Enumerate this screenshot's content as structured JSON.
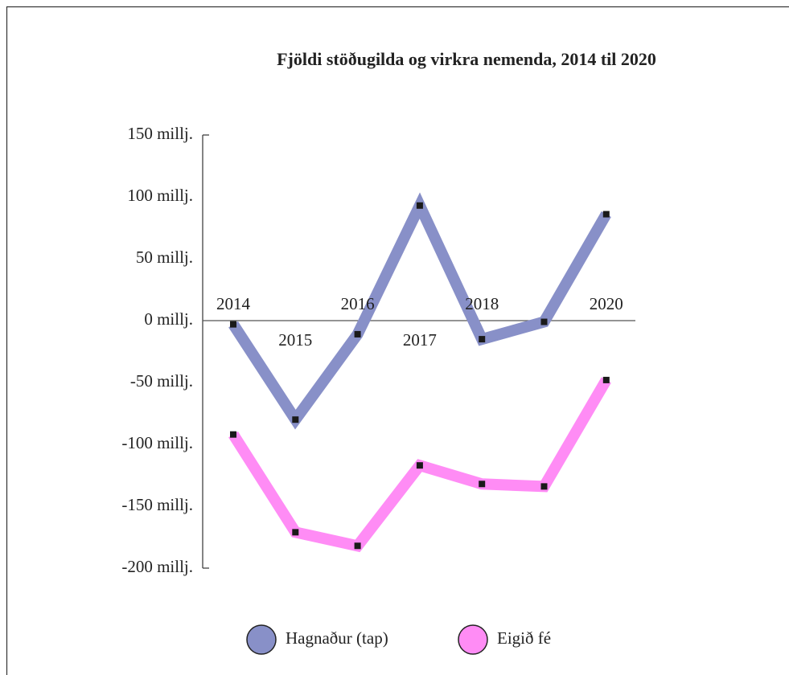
{
  "chart_data": {
    "type": "line",
    "title": "Fjöldi stöðugilda og virkra nemenda, 2014 til 2020",
    "categories": [
      "2014",
      "2015",
      "2016",
      "2017",
      "2018",
      null,
      "2020"
    ],
    "series": [
      {
        "name": "Hagnaður (tap)",
        "color": "#8890c8",
        "values": [
          -3,
          -80,
          -11,
          93,
          -15,
          -1,
          86
        ]
      },
      {
        "name": "Eigið fé",
        "color": "#ff8cf5",
        "values": [
          -92,
          -171,
          -182,
          -117,
          -132,
          -134,
          -48
        ]
      }
    ],
    "ylim": [
      -200,
      150
    ],
    "yticks": [
      {
        "value": -200,
        "label": "-200 millj."
      },
      {
        "value": -150,
        "label": "-150 millj."
      },
      {
        "value": -100,
        "label": "-100 millj."
      },
      {
        "value": -50,
        "label": "-50 millj."
      },
      {
        "value": 0,
        "label": "0 millj."
      },
      {
        "value": 50,
        "label": "50 millj."
      },
      {
        "value": 100,
        "label": "100 millj."
      },
      {
        "value": 150,
        "label": "150 millj."
      }
    ],
    "legend": "bottom"
  }
}
